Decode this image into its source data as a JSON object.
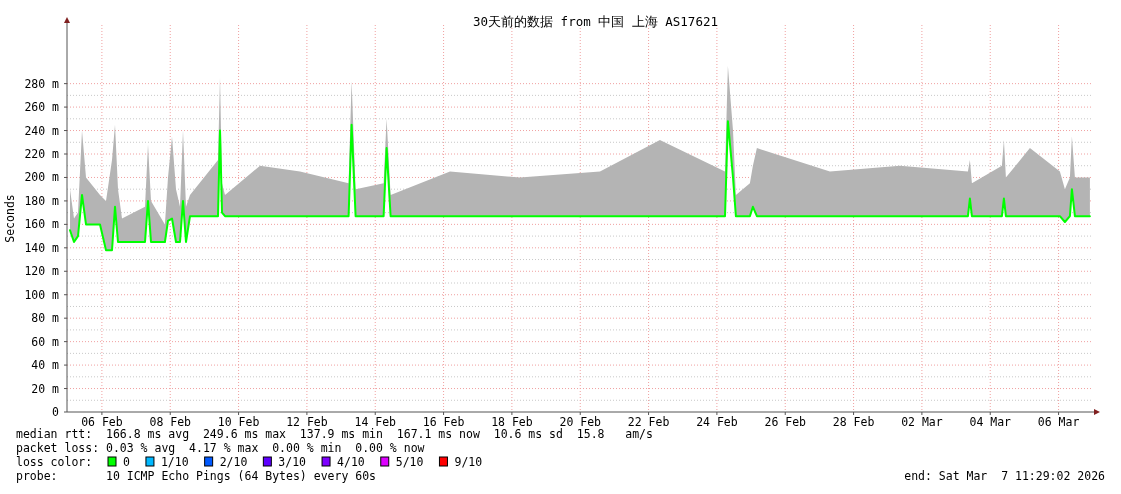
{
  "chart_data": {
    "type": "line",
    "title": "30天前的数据 from 中国 上海 AS17621",
    "ylabel": "Seconds",
    "legend_title": "loss color:",
    "legend": "bottom",
    "grid": true,
    "marker": "none",
    "line_style": "solid",
    "xlim": [
      "2026-02-05T11:29",
      "2026-03-07T11:29"
    ],
    "xticks": [
      {
        "value": "2026-02-06T12:00",
        "label": "06 Feb"
      },
      {
        "value": "2026-02-08T12:00",
        "label": "08 Feb"
      },
      {
        "value": "2026-02-10T12:00",
        "label": "10 Feb"
      },
      {
        "value": "2026-02-12T12:00",
        "label": "12 Feb"
      },
      {
        "value": "2026-02-14T12:00",
        "label": "14 Feb"
      },
      {
        "value": "2026-02-16T12:00",
        "label": "16 Feb"
      },
      {
        "value": "2026-02-18T12:00",
        "label": "18 Feb"
      },
      {
        "value": "2026-02-20T12:00",
        "label": "20 Feb"
      },
      {
        "value": "2026-02-22T12:00",
        "label": "22 Feb"
      },
      {
        "value": "2026-02-24T12:00",
        "label": "24 Feb"
      },
      {
        "value": "2026-02-26T12:00",
        "label": "26 Feb"
      },
      {
        "value": "2026-02-28T12:00",
        "label": "28 Feb"
      },
      {
        "value": "2026-03-02T12:00",
        "label": "02 Mar"
      },
      {
        "value": "2026-03-04T12:00",
        "label": "04 Mar"
      },
      {
        "value": "2026-03-06T12:00",
        "label": "06 Mar"
      }
    ],
    "ylim": [
      0,
      330
    ],
    "yticks": [
      0,
      {
        "value": 20,
        "label": "20 m"
      },
      {
        "value": 40,
        "label": "40 m"
      },
      {
        "value": 60,
        "label": "60 m"
      },
      {
        "value": 80,
        "label": "80 m"
      },
      {
        "value": 100,
        "label": "100 m"
      },
      {
        "value": 120,
        "label": "120 m"
      },
      {
        "value": 140,
        "label": "140 m"
      },
      {
        "value": 160,
        "label": "160 m"
      },
      {
        "value": 180,
        "label": "180 m"
      },
      {
        "value": 200,
        "label": "200 m"
      },
      {
        "value": 220,
        "label": "220 m"
      },
      {
        "value": 240,
        "label": "240 m"
      },
      {
        "value": 260,
        "label": "260 m"
      },
      {
        "value": 280,
        "label": "280 m"
      }
    ],
    "x": [
      "2026-02-05T13:36",
      "2026-02-05T16:24",
      "2026-02-05T19:12",
      "2026-02-05T22:00",
      "2026-02-06T00:48",
      "2026-02-06T10:40",
      "2026-02-06T14:53",
      "2026-02-06T19:05",
      "2026-02-06T21:12",
      "2026-02-06T23:18",
      "2026-02-07T02:07",
      "2026-02-07T18:17",
      "2026-02-07T20:23",
      "2026-02-07T22:29",
      "2026-02-08T08:17",
      "2026-02-08T10:24",
      "2026-02-08T13:13",
      "2026-02-08T16:05",
      "2026-02-08T18:53",
      "2026-02-08T20:59",
      "2026-02-08T23:05",
      "2026-02-09T01:53",
      "2026-02-09T21:35",
      "2026-02-09T22:59",
      "2026-02-10T00:23",
      "2026-02-10T02:29",
      "2026-02-11T03:02",
      "2026-02-12T07:08",
      "2026-02-13T17:17",
      "2026-02-13T19:23",
      "2026-02-13T22:11",
      "2026-02-14T17:53",
      "2026-02-14T19:59",
      "2026-02-14T22:47",
      "2026-02-16T16:30",
      "2026-02-18T17:39",
      "2026-02-21T01:51",
      "2026-02-22T19:59",
      "2026-02-24T17:41",
      "2026-02-24T19:45",
      "2026-02-24T23:17",
      "2026-02-25T01:22",
      "2026-02-25T11:12",
      "2026-02-25T13:18",
      "2026-02-25T16:07",
      "2026-02-27T19:24",
      "2026-03-01T20:33",
      "2026-03-03T20:19",
      "2026-03-03T21:44",
      "2026-03-03T23:07",
      "2026-03-04T20:12",
      "2026-03-04T21:37",
      "2026-03-04T23:00",
      "2026-03-05T15:52",
      "2026-03-06T12:57",
      "2026-03-06T16:27",
      "2026-03-06T19:57",
      "2026-03-06T21:22",
      "2026-03-06T23:29",
      "2026-03-07T10:01"
    ],
    "series": [
      {
        "name": "0",
        "color": "#00ff00",
        "values": [
          155,
          145,
          150,
          185,
          160,
          160,
          138,
          138,
          175,
          145,
          145,
          145,
          180,
          145,
          145,
          163,
          165,
          145,
          145,
          180,
          145,
          167,
          167,
          240,
          170,
          167,
          167,
          167,
          167,
          245,
          167,
          167,
          225,
          167,
          167,
          167,
          167,
          167,
          167,
          248,
          200,
          167,
          167,
          175,
          167,
          167,
          167,
          167,
          182,
          167,
          167,
          182,
          167,
          167,
          167,
          162,
          167,
          190,
          167,
          167
        ],
        "lower": [
          155,
          145,
          150,
          185,
          160,
          160,
          138,
          138,
          175,
          145,
          145,
          145,
          180,
          145,
          145,
          163,
          165,
          145,
          145,
          180,
          145,
          167,
          167,
          240,
          170,
          167,
          167,
          167,
          167,
          245,
          167,
          167,
          225,
          167,
          167,
          167,
          167,
          167,
          167,
          248,
          200,
          167,
          167,
          175,
          167,
          167,
          167,
          167,
          182,
          167,
          167,
          182,
          167,
          167,
          167,
          162,
          167,
          190,
          167,
          167
        ],
        "upper": [
          190,
          165,
          170,
          240,
          200,
          185,
          180,
          215,
          245,
          190,
          165,
          175,
          228,
          180,
          160,
          200,
          235,
          190,
          175,
          240,
          175,
          185,
          215,
          285,
          195,
          185,
          210,
          205,
          195,
          282,
          190,
          195,
          250,
          185,
          205,
          200,
          205,
          232,
          205,
          295,
          240,
          185,
          195,
          210,
          225,
          205,
          210,
          205,
          215,
          195,
          210,
          232,
          200,
          225,
          205,
          190,
          200,
          235,
          200,
          200
        ]
      },
      {
        "name": "1/10",
        "color": "#00b8ff",
        "values": [
          null,
          null,
          null,
          null,
          null,
          null,
          null,
          null,
          null,
          null,
          null,
          null,
          null,
          null,
          null,
          null,
          null,
          null,
          null,
          null,
          null,
          null,
          null,
          null,
          null,
          null,
          null,
          null,
          null,
          null,
          null,
          null,
          null,
          null,
          null,
          null,
          null,
          null,
          null,
          null,
          null,
          null,
          null,
          null,
          null,
          null,
          null,
          null,
          null,
          null,
          null,
          null,
          null,
          null,
          null,
          null,
          null,
          null,
          null,
          null
        ]
      },
      {
        "name": "2/10",
        "color": "#0059ff",
        "values": [
          null,
          null,
          null,
          null,
          null,
          null,
          null,
          null,
          null,
          null,
          null,
          null,
          null,
          null,
          null,
          null,
          null,
          null,
          null,
          null,
          null,
          null,
          null,
          null,
          null,
          null,
          null,
          null,
          null,
          null,
          null,
          null,
          null,
          null,
          null,
          null,
          null,
          null,
          null,
          null,
          null,
          null,
          null,
          null,
          null,
          null,
          null,
          null,
          null,
          null,
          null,
          null,
          null,
          null,
          null,
          null,
          null,
          null,
          null,
          null
        ]
      },
      {
        "name": "3/10",
        "color": "#5e00ff",
        "values": [
          null,
          null,
          null,
          null,
          null,
          null,
          null,
          null,
          null,
          null,
          null,
          null,
          null,
          null,
          null,
          null,
          null,
          null,
          null,
          null,
          null,
          null,
          null,
          null,
          null,
          null,
          null,
          null,
          null,
          null,
          null,
          null,
          null,
          null,
          null,
          null,
          null,
          null,
          null,
          null,
          null,
          null,
          null,
          null,
          null,
          null,
          null,
          null,
          null,
          null,
          null,
          null,
          null,
          null,
          null,
          null,
          null,
          null,
          null,
          null
        ]
      },
      {
        "name": "4/10",
        "color": "#7e00ff",
        "values": [
          null,
          null,
          null,
          null,
          null,
          null,
          null,
          null,
          null,
          null,
          null,
          null,
          null,
          null,
          null,
          null,
          null,
          null,
          null,
          null,
          null,
          null,
          null,
          null,
          null,
          null,
          null,
          null,
          null,
          null,
          null,
          null,
          null,
          null,
          null,
          null,
          null,
          null,
          null,
          null,
          null,
          null,
          null,
          null,
          null,
          null,
          null,
          null,
          null,
          null,
          null,
          null,
          null,
          null,
          null,
          null,
          null,
          null,
          null,
          null
        ]
      },
      {
        "name": "5/10",
        "color": "#dd00ff",
        "values": [
          null,
          null,
          null,
          null,
          null,
          null,
          null,
          null,
          null,
          null,
          null,
          null,
          null,
          null,
          null,
          null,
          null,
          null,
          null,
          null,
          null,
          null,
          null,
          null,
          null,
          null,
          null,
          null,
          null,
          null,
          null,
          null,
          null,
          null,
          null,
          null,
          null,
          null,
          null,
          null,
          null,
          null,
          null,
          null,
          null,
          null,
          null,
          null,
          null,
          null,
          null,
          null,
          null,
          null,
          null,
          null,
          null,
          null,
          null,
          null
        ]
      },
      {
        "name": "9/10",
        "color": "#ff0000",
        "values": [
          null,
          null,
          null,
          null,
          null,
          null,
          null,
          null,
          null,
          null,
          null,
          null,
          null,
          null,
          null,
          null,
          null,
          null,
          null,
          null,
          null,
          null,
          null,
          null,
          null,
          null,
          null,
          null,
          null,
          null,
          null,
          null,
          null,
          null,
          null,
          null,
          null,
          null,
          null,
          null,
          null,
          null,
          null,
          null,
          null,
          null,
          null,
          null,
          null,
          null,
          null,
          null,
          null,
          null,
          null,
          null,
          null,
          null,
          null,
          null
        ]
      }
    ],
    "annotations": [
      "median rtt:  166.8 ms avg  249.6 ms max  137.9 ms min  167.1 ms now  10.6 ms sd  15.8   am/s",
      "packet loss: 0.03 % avg  4.17 % max  0.00 % min  0.00 % now",
      "probe:       10 ICMP Echo Pings (64 Bytes) every 60s",
      "end: Sat Mar  7 11:29:02 2026"
    ]
  }
}
